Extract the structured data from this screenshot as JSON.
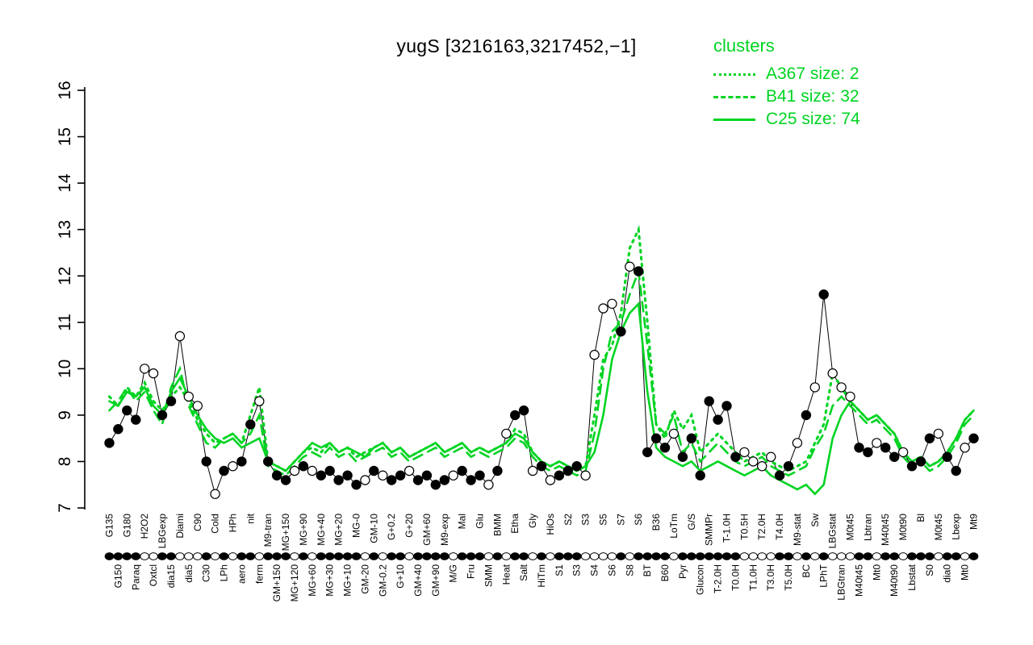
{
  "figure": {
    "title": "yugS [3216163,3217452,−1]",
    "colors": {
      "cluster_green": "#00D422",
      "point_black": "#000000",
      "background": "#FFFFFF"
    }
  },
  "legend": {
    "heading": "clusters",
    "entries": [
      {
        "label": "A367 size: 2",
        "style": "dotted"
      },
      {
        "label": "B41 size: 32",
        "style": "dashed"
      },
      {
        "label": "C25 size: 74",
        "style": "solid"
      }
    ]
  },
  "chart_data": {
    "type": "line",
    "title": "yugS [3216163,3217452,−1]",
    "ylabel": "",
    "xlabel": "",
    "ylim": [
      7,
      16
    ],
    "yticks": [
      7,
      8,
      9,
      10,
      11,
      12,
      13,
      14,
      15,
      16
    ],
    "grid": false,
    "legend_position": "top-right",
    "categories": [
      "G135",
      "G150",
      "G180",
      "Paraq",
      "H2O2",
      "Oxtcl",
      "LBGexp",
      "dia15",
      "Diami",
      "dia5",
      "C90",
      "C30",
      "Cold",
      "LPh",
      "HPh",
      "aero",
      "nit",
      "ferm",
      "M9-tran",
      "GM+150",
      "MG+150",
      "MG+120",
      "MG+90",
      "MG+60",
      "MG+40",
      "MG+30",
      "MG+20",
      "MG+10",
      "MG-0",
      "GM-20",
      "GM-10",
      "GM-0.2",
      "G+0.2",
      "G+10",
      "G+20",
      "GM+40",
      "GM+60",
      "GM+90",
      "M9-exp",
      "M/G",
      "Mal",
      "Fru",
      "Glu",
      "SMM",
      "BMM",
      "Heat",
      "Etha",
      "Salt",
      "Gly",
      "HiTm",
      "HiOs",
      "S1",
      "S2",
      "S3",
      "S3",
      "S4",
      "S5",
      "S6",
      "S7",
      "S8",
      "S6",
      "BT",
      "B36",
      "B60",
      "LoTm",
      "Pyr",
      "G/S",
      "Glucon",
      "SMMPr",
      "T-2.0H",
      "T-1.0H",
      "T0.0H",
      "T0.5H",
      "T1.0H",
      "T2.0H",
      "T3.0H",
      "T4.0H",
      "T5.0H",
      "M9-stat",
      "BC",
      "Sw",
      "LPhT",
      "LBGstat",
      "LBGtran",
      "M0t45",
      "M40t45",
      "Lbtran",
      "Mt0",
      "M40t45",
      "M40t90",
      "M0t90",
      "Lbstat",
      "Bl",
      "S0",
      "M0t45",
      "dia0",
      "Lbexp",
      "Mt0",
      "Mt9"
    ],
    "gene_points": {
      "name": "yugS expression",
      "values": [
        8.4,
        8.7,
        9.1,
        8.9,
        10.0,
        9.9,
        9.0,
        9.3,
        10.7,
        9.4,
        9.2,
        8.0,
        7.3,
        7.8,
        7.9,
        8.0,
        8.8,
        9.3,
        8.0,
        7.7,
        7.6,
        7.8,
        7.9,
        7.8,
        7.7,
        7.8,
        7.6,
        7.7,
        7.5,
        7.6,
        7.8,
        7.7,
        7.6,
        7.7,
        7.8,
        7.6,
        7.7,
        7.5,
        7.6,
        7.7,
        7.8,
        7.6,
        7.7,
        7.5,
        7.8,
        8.6,
        9.0,
        9.1,
        7.8,
        7.9,
        7.6,
        7.7,
        7.8,
        7.9,
        7.7,
        10.3,
        11.3,
        11.4,
        10.8,
        12.2,
        12.1,
        8.2,
        8.5,
        8.3,
        8.6,
        8.1,
        8.5,
        7.7,
        9.3,
        8.9,
        9.2,
        8.1,
        8.2,
        8.0,
        7.9,
        8.1,
        7.7,
        7.9,
        8.4,
        9.0,
        9.6,
        11.6,
        9.9,
        9.6,
        9.4,
        8.3,
        8.2,
        8.4,
        8.3,
        8.1,
        8.2,
        7.9,
        8.0,
        8.5,
        8.6,
        8.1,
        7.8,
        8.3,
        8.5
      ],
      "open": [
        false,
        false,
        false,
        false,
        true,
        true,
        false,
        false,
        true,
        true,
        true,
        false,
        true,
        false,
        true,
        false,
        false,
        true,
        false,
        false,
        false,
        true,
        false,
        true,
        false,
        false,
        false,
        false,
        false,
        true,
        false,
        true,
        false,
        false,
        true,
        false,
        false,
        false,
        false,
        true,
        false,
        false,
        false,
        true,
        false,
        true,
        false,
        false,
        true,
        false,
        true,
        false,
        false,
        false,
        true,
        true,
        true,
        true,
        false,
        true,
        false,
        false,
        false,
        false,
        true,
        false,
        false,
        false,
        false,
        false,
        false,
        false,
        true,
        true,
        true,
        true,
        false,
        false,
        true,
        false,
        true,
        false,
        true,
        true,
        true,
        false,
        false,
        true,
        false,
        false,
        true,
        false,
        false,
        false,
        true,
        false,
        false,
        true,
        false
      ]
    },
    "series": [
      {
        "name": "A367 size: 2",
        "style": "dotted",
        "values": [
          9.4,
          9.2,
          9.6,
          9.4,
          9.7,
          9.3,
          9.1,
          9.4,
          9.6,
          9.3,
          8.9,
          8.6,
          8.4,
          8.5,
          8.6,
          8.4,
          9.0,
          9.6,
          8.0,
          7.9,
          7.8,
          8.0,
          8.2,
          8.3,
          8.2,
          8.4,
          8.2,
          8.3,
          8.1,
          8.2,
          8.3,
          8.4,
          8.2,
          8.3,
          8.1,
          8.2,
          8.3,
          8.4,
          8.2,
          8.3,
          8.4,
          8.2,
          8.3,
          8.2,
          8.3,
          8.4,
          8.7,
          8.6,
          8.2,
          8.0,
          7.9,
          8.0,
          7.9,
          7.8,
          7.9,
          9.0,
          10.2,
          10.5,
          11.2,
          12.6,
          13.0,
          11.0,
          8.8,
          8.5,
          9.1,
          8.7,
          9.0,
          8.2,
          8.4,
          8.6,
          8.4,
          8.2,
          8.0,
          8.1,
          8.2,
          8.0,
          7.9,
          7.8,
          7.9,
          8.0,
          8.4,
          8.8,
          9.9,
          9.6,
          9.3,
          9.1,
          8.9,
          9.0,
          8.8,
          8.6,
          8.2,
          8.0,
          8.1,
          7.9,
          8.0,
          8.2,
          8.5,
          8.9,
          9.1
        ]
      },
      {
        "name": "B41 size: 32",
        "style": "dashed",
        "values": [
          9.1,
          9.3,
          9.6,
          9.3,
          9.5,
          9.1,
          8.8,
          9.6,
          10.0,
          9.2,
          8.8,
          8.4,
          8.3,
          8.5,
          8.6,
          8.4,
          8.6,
          9.0,
          7.9,
          7.8,
          7.7,
          7.9,
          8.1,
          8.2,
          8.1,
          8.3,
          8.1,
          8.2,
          8.0,
          8.1,
          8.2,
          8.3,
          8.1,
          8.2,
          8.0,
          8.1,
          8.2,
          8.3,
          8.1,
          8.2,
          8.3,
          8.1,
          8.2,
          8.1,
          8.2,
          8.3,
          8.5,
          8.4,
          8.1,
          7.9,
          7.8,
          7.9,
          7.8,
          7.7,
          7.8,
          8.6,
          10.0,
          10.8,
          11.0,
          11.6,
          12.1,
          10.5,
          8.8,
          8.6,
          9.0,
          8.2,
          8.4,
          8.0,
          8.2,
          8.4,
          8.2,
          8.0,
          7.9,
          8.0,
          8.1,
          7.9,
          7.8,
          7.7,
          7.8,
          7.9,
          8.3,
          8.6,
          9.2,
          9.4,
          9.2,
          9.0,
          8.8,
          8.9,
          8.7,
          8.5,
          8.1,
          7.9,
          8.0,
          7.8,
          7.9,
          8.1,
          8.4,
          8.8,
          9.0
        ]
      },
      {
        "name": "C25 size: 74",
        "style": "solid",
        "values": [
          9.3,
          9.2,
          9.5,
          9.4,
          9.6,
          9.2,
          9.0,
          9.5,
          9.8,
          9.4,
          9.0,
          8.7,
          8.5,
          8.4,
          8.5,
          8.3,
          8.4,
          8.5,
          8.0,
          7.9,
          7.8,
          8.0,
          8.2,
          8.4,
          8.3,
          8.4,
          8.2,
          8.3,
          8.2,
          8.1,
          8.3,
          8.4,
          8.2,
          8.3,
          8.1,
          8.2,
          8.3,
          8.4,
          8.2,
          8.3,
          8.4,
          8.2,
          8.3,
          8.2,
          8.3,
          8.4,
          8.6,
          8.5,
          8.2,
          8.0,
          7.9,
          8.0,
          7.9,
          7.8,
          7.9,
          8.2,
          9.0,
          10.2,
          10.8,
          11.2,
          11.4,
          9.5,
          8.3,
          8.1,
          8.0,
          7.9,
          8.0,
          7.8,
          7.9,
          8.0,
          7.9,
          7.8,
          7.7,
          7.8,
          7.9,
          7.7,
          7.6,
          7.5,
          7.4,
          7.5,
          7.3,
          7.5,
          8.5,
          9.0,
          9.3,
          9.1,
          8.9,
          9.0,
          8.8,
          8.6,
          8.2,
          8.0,
          8.1,
          7.9,
          8.0,
          8.2,
          8.5,
          8.9,
          9.1
        ]
      }
    ]
  }
}
